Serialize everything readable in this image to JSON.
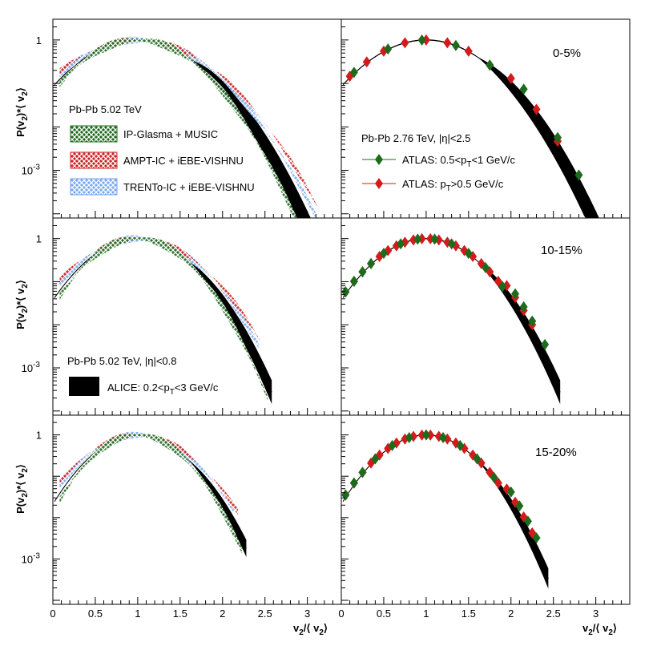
{
  "chart_data": {
    "type": "line",
    "layout": "3 rows x 2 columns of log-scale distribution panels",
    "x_axis": {
      "label": "v2/⟨v2⟩",
      "label_main": "v",
      "label_sub": "2",
      "label_tail": "/⟨ v",
      "label_sub2": "2",
      "label_close": "⟩",
      "left_range": [
        0,
        3.4
      ],
      "right_range": [
        0,
        3.4
      ],
      "ticks": [
        "0",
        "0.5",
        "1",
        "1.5",
        "2",
        "2.5",
        "3"
      ]
    },
    "y_axis": {
      "label": "P(v2)*⟨v2⟩",
      "label_p": "P(v",
      "label_sub": "2",
      "label_mid": ")*⟨ v",
      "label_sub2": "2",
      "label_close": "⟩",
      "scale": "log",
      "range": [
        8e-05,
        3
      ],
      "tick_major_one": "1",
      "tick_minus3_base": "10",
      "tick_minus3_exp": "-3"
    },
    "panels": [
      {
        "row": 0,
        "col": 0,
        "width_model": 0.45,
        "cut": 3.3
      },
      {
        "row": 1,
        "col": 0,
        "width_model": 0.39,
        "cut": 2.6
      },
      {
        "row": 2,
        "col": 0,
        "width_model": 0.36,
        "cut": 2.3
      },
      {
        "row": 0,
        "col": 1,
        "width_model": 0.45,
        "cut": 3.3
      },
      {
        "row": 1,
        "col": 1,
        "width_model": 0.39,
        "cut": 2.6
      },
      {
        "row": 2,
        "col": 1,
        "width_model": 0.36,
        "cut": 2.45
      }
    ],
    "centrality_labels": [
      "0-5%",
      "10-15%",
      "15-20%"
    ],
    "legend_models": {
      "title": "Pb-Pb 5.02 TeV",
      "entries": [
        {
          "name": "IP-Glasma + MUSIC",
          "color": "#1d6b1d"
        },
        {
          "name": "AMPT-IC + iEBE-VISHNU",
          "color": "#cc2222"
        },
        {
          "name": "TRENTo-IC + iEBE-VISHNU",
          "color": "#6aa0f0"
        }
      ]
    },
    "legend_alice": {
      "title": "Pb-Pb 5.02 TeV, |η|<0.8",
      "entry": "ALICE: 0.2<pT<3 GeV/c",
      "entry_pre": "ALICE: 0.2<p",
      "entry_sub": "T",
      "entry_post": "<3 GeV/c",
      "color": "#000000"
    },
    "legend_atlas": {
      "title": "Pb-Pb 2.76 TeV, |η|<2.5",
      "entries": [
        {
          "name": "ATLAS: 0.5<pT<1 GeV/c",
          "pre": "ATLAS: 0.5<p",
          "sub": "T",
          "post": "<1 GeV/c",
          "color": "#1d6b1d"
        },
        {
          "name": "ATLAS: pT>0.5 GeV/c",
          "pre": "ATLAS: p",
          "sub": "T",
          "post": ">0.5 GeV/c",
          "color": "#d41a1a"
        }
      ]
    },
    "atlas_points": {
      "x": [
        0.05,
        0.15,
        0.25,
        0.35,
        0.45,
        0.55,
        0.65,
        0.75,
        0.85,
        0.95,
        1.05,
        1.15,
        1.25,
        1.35,
        1.45,
        1.55,
        1.65,
        1.75,
        1.85,
        1.95,
        2.05,
        2.15,
        2.25,
        2.35
      ],
      "rows": [
        {
          "green_x": [
            0.15,
            0.55,
            0.95,
            1.35,
            1.75,
            2.15,
            2.55,
            2.8
          ],
          "red_x": [
            0.1,
            0.3,
            0.5,
            0.75,
            1.0,
            1.25,
            1.5,
            1.75,
            2.0,
            2.3,
            2.55
          ]
        },
        {
          "green_x": [
            0.05,
            0.15,
            0.25,
            0.35,
            0.5,
            0.7,
            0.9,
            1.1,
            1.3,
            1.5,
            1.7,
            1.9,
            2.05,
            2.15,
            2.25,
            2.4
          ],
          "red_x": [
            0.05,
            0.15,
            0.25,
            0.35,
            0.45,
            0.55,
            0.65,
            0.75,
            0.85,
            0.95,
            1.05,
            1.15,
            1.25,
            1.35,
            1.45,
            1.55,
            1.65,
            1.75,
            1.85,
            1.95,
            2.05,
            2.15,
            2.25
          ]
        },
        {
          "green_x": [
            0.05,
            0.15,
            0.25,
            0.4,
            0.6,
            0.8,
            1.0,
            1.2,
            1.4,
            1.6,
            1.8,
            2.0,
            2.1,
            2.2,
            2.3
          ],
          "red_x": [
            0.05,
            0.15,
            0.25,
            0.35,
            0.45,
            0.55,
            0.65,
            0.75,
            0.85,
            0.95,
            1.05,
            1.15,
            1.25,
            1.35,
            1.45,
            1.55,
            1.65,
            1.75,
            1.85,
            1.95,
            2.05,
            2.15,
            2.25
          ]
        }
      ]
    }
  }
}
